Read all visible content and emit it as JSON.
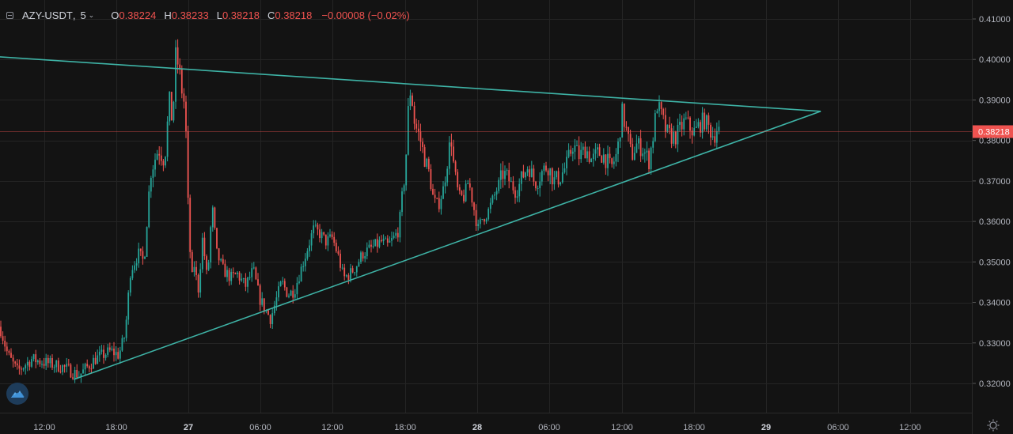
{
  "legend": {
    "symbol": "AZY-USDT",
    "separator": ",",
    "timeframe": "5",
    "open_label": "O",
    "open": "0.38224",
    "high_label": "H",
    "high": "0.38233",
    "low_label": "L",
    "low": "0.38218",
    "close_label": "C",
    "close": "0.38218",
    "change": "−0.00008 (−0.02%)"
  },
  "colors": {
    "background": "#131313",
    "grid": "#242424",
    "up": "#26a69a",
    "down": "#ef5350",
    "trendline": "#3eb3a6",
    "last_price": "#ef5350"
  },
  "icons": {
    "collapse": "collapse-icon",
    "chevron": "chevron-down-icon",
    "logo": "cloud-logo-icon",
    "settings": "gear-icon"
  },
  "chart_data": {
    "type": "candlestick",
    "symbol": "AZY-USDT",
    "interval": "5",
    "ylim": [
      0.3125,
      0.4125
    ],
    "y_ticks": [
      "0.41000",
      "0.40000",
      "0.39000",
      "0.38000",
      "0.37000",
      "0.36000",
      "0.35000",
      "0.34000",
      "0.33000",
      "0.32000"
    ],
    "x_ticks": [
      "12:00",
      "18:00",
      "27",
      "06:00",
      "12:00",
      "18:00",
      "28",
      "06:00",
      "12:00",
      "18:00",
      "29",
      "06:00",
      "12:00"
    ],
    "grid": true,
    "last_price": "0.38218",
    "price_path": [
      [
        0,
        0.334
      ],
      [
        10,
        0.327
      ],
      [
        22,
        0.323
      ],
      [
        40,
        0.326
      ],
      [
        60,
        0.325
      ],
      [
        80,
        0.324
      ],
      [
        100,
        0.322
      ],
      [
        120,
        0.326
      ],
      [
        140,
        0.328
      ],
      [
        150,
        0.327
      ],
      [
        158,
        0.332
      ],
      [
        165,
        0.348
      ],
      [
        175,
        0.352
      ],
      [
        182,
        0.35
      ],
      [
        190,
        0.372
      ],
      [
        200,
        0.378
      ],
      [
        208,
        0.375
      ],
      [
        214,
        0.39
      ],
      [
        218,
        0.384
      ],
      [
        222,
        0.401
      ],
      [
        226,
        0.398
      ],
      [
        230,
        0.392
      ],
      [
        234,
        0.388
      ],
      [
        238,
        0.362
      ],
      [
        242,
        0.345
      ],
      [
        246,
        0.35
      ],
      [
        250,
        0.342
      ],
      [
        256,
        0.356
      ],
      [
        262,
        0.345
      ],
      [
        268,
        0.364
      ],
      [
        274,
        0.352
      ],
      [
        282,
        0.348
      ],
      [
        292,
        0.346
      ],
      [
        300,
        0.347
      ],
      [
        310,
        0.344
      ],
      [
        320,
        0.348
      ],
      [
        328,
        0.341
      ],
      [
        336,
        0.338
      ],
      [
        342,
        0.336
      ],
      [
        348,
        0.34
      ],
      [
        356,
        0.345
      ],
      [
        364,
        0.342
      ],
      [
        372,
        0.343
      ],
      [
        380,
        0.348
      ],
      [
        388,
        0.353
      ],
      [
        396,
        0.358
      ],
      [
        404,
        0.357
      ],
      [
        412,
        0.355
      ],
      [
        420,
        0.356
      ],
      [
        428,
        0.351
      ],
      [
        434,
        0.346
      ],
      [
        442,
        0.347
      ],
      [
        450,
        0.349
      ],
      [
        458,
        0.352
      ],
      [
        466,
        0.353
      ],
      [
        474,
        0.354
      ],
      [
        482,
        0.355
      ],
      [
        490,
        0.354
      ],
      [
        498,
        0.356
      ],
      [
        504,
        0.358
      ],
      [
        508,
        0.366
      ],
      [
        512,
        0.372
      ],
      [
        516,
        0.388
      ],
      [
        519,
        0.393
      ],
      [
        524,
        0.384
      ],
      [
        530,
        0.381
      ],
      [
        536,
        0.376
      ],
      [
        542,
        0.372
      ],
      [
        548,
        0.365
      ],
      [
        554,
        0.364
      ],
      [
        560,
        0.368
      ],
      [
        566,
        0.376
      ],
      [
        570,
        0.381
      ],
      [
        574,
        0.372
      ],
      [
        580,
        0.366
      ],
      [
        586,
        0.366
      ],
      [
        592,
        0.37
      ],
      [
        598,
        0.364
      ],
      [
        604,
        0.358
      ],
      [
        610,
        0.361
      ],
      [
        616,
        0.362
      ],
      [
        622,
        0.365
      ],
      [
        628,
        0.368
      ],
      [
        636,
        0.372
      ],
      [
        644,
        0.37
      ],
      [
        652,
        0.367
      ],
      [
        660,
        0.371
      ],
      [
        668,
        0.374
      ],
      [
        676,
        0.369
      ],
      [
        684,
        0.372
      ],
      [
        692,
        0.374
      ],
      [
        700,
        0.37
      ],
      [
        708,
        0.371
      ],
      [
        716,
        0.374
      ],
      [
        724,
        0.379
      ],
      [
        732,
        0.376
      ],
      [
        740,
        0.378
      ],
      [
        748,
        0.375
      ],
      [
        756,
        0.377
      ],
      [
        764,
        0.376
      ],
      [
        772,
        0.373
      ],
      [
        780,
        0.377
      ],
      [
        786,
        0.387
      ],
      [
        792,
        0.382
      ],
      [
        798,
        0.376
      ],
      [
        804,
        0.379
      ],
      [
        812,
        0.378
      ],
      [
        820,
        0.375
      ],
      [
        826,
        0.382
      ],
      [
        830,
        0.389
      ],
      [
        836,
        0.386
      ],
      [
        842,
        0.382
      ],
      [
        848,
        0.381
      ],
      [
        854,
        0.381
      ],
      [
        860,
        0.383
      ],
      [
        866,
        0.385
      ],
      [
        872,
        0.383
      ],
      [
        878,
        0.382
      ],
      [
        884,
        0.384
      ],
      [
        890,
        0.385
      ],
      [
        896,
        0.383
      ],
      [
        902,
        0.381
      ],
      [
        906,
        0.383
      ],
      [
        910,
        0.382
      ]
    ],
    "trendlines": [
      {
        "name": "upper",
        "from": [
          "25 20:30",
          0.403
        ],
        "to": [
          "29 04:30",
          0.3872
        ]
      },
      {
        "name": "lower",
        "from": [
          "26 14:30",
          0.321
        ],
        "to": [
          "29 04:30",
          0.3872
        ]
      }
    ]
  }
}
